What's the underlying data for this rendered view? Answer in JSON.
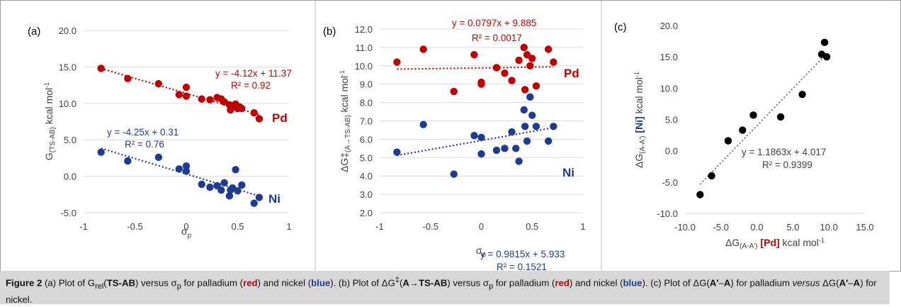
{
  "colors": {
    "pd": "#c00000",
    "ni": "#1f3a93",
    "c": "#000000",
    "grid": "#d9d9d9",
    "trend_c": "#808080"
  },
  "chart_data": [
    {
      "type": "scatter",
      "panel_label": "(a)",
      "xlabel": "σ",
      "xlabel_sub": "p",
      "ylabel_main": "G",
      "ylabel_sub": "(TS-AB)",
      "ylabel_unit": " kcal mol",
      "ylabel_sup": "-1",
      "xlim": [
        -1,
        1
      ],
      "ylim": [
        -5,
        20
      ],
      "xticks": [
        "-1",
        "-0.5",
        "0",
        "0.5",
        "1"
      ],
      "yticks": [
        "-5.0",
        "0.0",
        "5.0",
        "10.0",
        "15.0",
        "20.0"
      ],
      "grid": "horizontal",
      "series": [
        {
          "name": "Pd",
          "color_key": "pd",
          "equation": "y = -4.12x + 11.37",
          "r2": "R² = 0.92",
          "trend": [
            11.37,
            -4.12
          ],
          "points": [
            [
              -0.83,
              14.8
            ],
            [
              -0.57,
              13.4
            ],
            [
              -0.27,
              12.7
            ],
            [
              -0.07,
              11.2
            ],
            [
              0,
              12.2
            ],
            [
              0,
              11.0
            ],
            [
              0.15,
              10.6
            ],
            [
              0.23,
              10.5
            ],
            [
              0.3,
              10.8
            ],
            [
              0.34,
              10.6
            ],
            [
              0.37,
              10.2
            ],
            [
              0.42,
              9.8
            ],
            [
              0.43,
              9.1
            ],
            [
              0.45,
              9.6
            ],
            [
              0.48,
              9.9
            ],
            [
              0.5,
              9.3
            ],
            [
              0.52,
              9.5
            ],
            [
              0.54,
              9.3
            ],
            [
              0.66,
              8.7
            ],
            [
              0.71,
              7.9
            ]
          ]
        },
        {
          "name": "Ni",
          "color_key": "ni",
          "equation": "y = -4.25x + 0.31",
          "r2": "R² = 0.76",
          "trend": [
            0.31,
            -4.25
          ],
          "points": [
            [
              -0.83,
              3.3
            ],
            [
              -0.57,
              2.1
            ],
            [
              -0.27,
              2.6
            ],
            [
              -0.07,
              1.0
            ],
            [
              0,
              1.4
            ],
            [
              0,
              0.7
            ],
            [
              0.15,
              -1.1
            ],
            [
              0.23,
              -1.5
            ],
            [
              0.3,
              -1.3
            ],
            [
              0.34,
              -1.9
            ],
            [
              0.37,
              -0.9
            ],
            [
              0.42,
              -2.7
            ],
            [
              0.43,
              -1.9
            ],
            [
              0.45,
              -1.6
            ],
            [
              0.48,
              0.9
            ],
            [
              0.5,
              -2.0
            ],
            [
              0.54,
              -1.2
            ],
            [
              0.66,
              -3.7
            ],
            [
              0.71,
              -2.9
            ]
          ]
        }
      ]
    },
    {
      "type": "scatter",
      "panel_label": "(b)",
      "xlabel": "σ",
      "xlabel_sub": "p",
      "ylabel_main": "ΔG‡",
      "ylabel_sub": "(A→TS-AB)",
      "ylabel_unit": " kcal mol",
      "ylabel_sup": "-1",
      "xlim": [
        -1,
        1
      ],
      "ylim": [
        2,
        12
      ],
      "xticks": [
        "-1",
        "-0.5",
        "0",
        "0.5",
        "1"
      ],
      "yticks": [
        "2.0",
        "3.0",
        "4.0",
        "5.0",
        "6.0",
        "7.0",
        "8.0",
        "9.0",
        "10.0",
        "11.0",
        "12.0"
      ],
      "grid": "horizontal",
      "series": [
        {
          "name": "Pd",
          "color_key": "pd",
          "equation": "y = 0.0797x + 9.885",
          "r2": "R² = 0.0017",
          "trend": [
            9.885,
            0.0797
          ],
          "points": [
            [
              -0.83,
              10.2
            ],
            [
              -0.57,
              10.9
            ],
            [
              -0.27,
              8.6
            ],
            [
              -0.07,
              10.6
            ],
            [
              0,
              9.0
            ],
            [
              0,
              9.1
            ],
            [
              0.15,
              9.9
            ],
            [
              0.23,
              9.6
            ],
            [
              0.3,
              9.2
            ],
            [
              0.37,
              10.3
            ],
            [
              0.42,
              11.0
            ],
            [
              0.43,
              8.7
            ],
            [
              0.45,
              10.6
            ],
            [
              0.48,
              10.0
            ],
            [
              0.5,
              10.4
            ],
            [
              0.54,
              8.9
            ],
            [
              0.66,
              10.9
            ],
            [
              0.71,
              10.2
            ]
          ]
        },
        {
          "name": "Ni",
          "color_key": "ni",
          "equation": "y = 0.9815x + 5.933",
          "r2": "R² = 0.1521",
          "trend": [
            5.933,
            0.9815
          ],
          "points": [
            [
              -0.83,
              5.3
            ],
            [
              -0.57,
              6.8
            ],
            [
              -0.27,
              4.1
            ],
            [
              -0.07,
              6.2
            ],
            [
              0,
              6.1
            ],
            [
              0,
              5.2
            ],
            [
              0.15,
              5.4
            ],
            [
              0.23,
              5.5
            ],
            [
              0.3,
              6.4
            ],
            [
              0.34,
              5.5
            ],
            [
              0.37,
              4.8
            ],
            [
              0.42,
              7.6
            ],
            [
              0.43,
              6.7
            ],
            [
              0.45,
              5.9
            ],
            [
              0.48,
              8.3
            ],
            [
              0.5,
              7.3
            ],
            [
              0.54,
              6.7
            ],
            [
              0.66,
              5.9
            ],
            [
              0.71,
              6.7
            ]
          ]
        }
      ]
    },
    {
      "type": "scatter",
      "panel_label": "(c)",
      "xlabel_main": "ΔG",
      "xlabel_sub": "(A-A')",
      "xlabel_pd": " [Pd]",
      "xlabel_unit": " kcal mol",
      "xlabel_sup": "-1",
      "ylabel_main": "ΔG",
      "ylabel_sub": "(A-A')",
      "ylabel_ni": " [Ni]",
      "ylabel_unit": " kcal mol",
      "ylabel_sup": "-1",
      "xlim": [
        -10,
        15
      ],
      "ylim": [
        -10,
        20
      ],
      "xticks": [
        "-10.0",
        "-5.0",
        "0.0",
        "5.0",
        "10.0",
        "15.0"
      ],
      "yticks": [
        "-10.0",
        "-5.0",
        "0.0",
        "5.0",
        "10.0",
        "15.0",
        "20.0"
      ],
      "grid": "none",
      "series": [
        {
          "name": "",
          "color_key": "c",
          "equation": "y = 1.1863x + 4.017",
          "r2": "R² = 0.9399",
          "trend": [
            4.017,
            1.1863
          ],
          "trend_range": [
            -7.9,
            9.7
          ],
          "points": [
            [
              -7.9,
              -7.0
            ],
            [
              -6.3,
              -4.0
            ],
            [
              -4.0,
              1.6
            ],
            [
              -2.0,
              3.3
            ],
            [
              -0.5,
              5.7
            ],
            [
              3.3,
              5.4
            ],
            [
              6.3,
              9.0
            ],
            [
              9.0,
              15.4
            ],
            [
              9.4,
              17.3
            ],
            [
              9.7,
              15.0
            ]
          ]
        }
      ]
    }
  ],
  "caption": {
    "fig": "Figure 2",
    "a1": " (a) Plot of G",
    "a_sub": "rel",
    "a2": "(",
    "ts": "TS-AB",
    "a3": ") versus σ",
    "p_sub": "p",
    "a4": " for palladium (",
    "red": "red",
    "a5": ") and nickel (",
    "blue": "blue",
    "a6": "). (b) Plot of ΔG",
    "dagger": "‡",
    "b1": "(",
    "A": "A",
    "arrow": "→",
    "ts2": "TS-AB",
    "b2": ") versus σ",
    "b3": " for palladium (",
    "red2": "red",
    "b4": ") and nickel (",
    "blue2": "blue",
    "b5": "). (c) Plot of ΔG(",
    "Aprime": "A′",
    "dash": "–",
    "A2": "A",
    "c1": ") for palladium ",
    "versus": "versus",
    "c2": " ΔG(",
    "Aprime2": "A′",
    "dash2": "–",
    "A3": "A",
    "c3": ") for nickel."
  }
}
